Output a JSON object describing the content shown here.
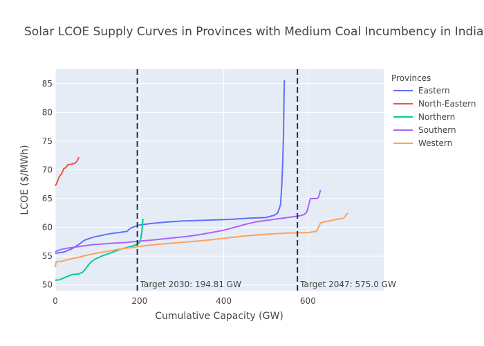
{
  "chart_data": {
    "type": "line",
    "title": "Solar LCOE Supply Curves in Provinces with Medium Coal Incumbency in India",
    "xlabel": "Cumulative Capacity (GW)",
    "ylabel": "LCOE ($/MWh)",
    "xlim": [
      0,
      780
    ],
    "ylim": [
      49,
      87.5
    ],
    "xticks": [
      0,
      200,
      400,
      600
    ],
    "yticks": [
      50,
      55,
      60,
      65,
      70,
      75,
      80,
      85
    ],
    "grid": true,
    "legend": {
      "title": "Provinces",
      "position": "right"
    },
    "series": [
      {
        "name": "Eastern",
        "color": "#636efa",
        "points": [
          [
            0,
            55.5
          ],
          [
            10,
            55.6
          ],
          [
            20,
            55.7
          ],
          [
            30,
            56.0
          ],
          [
            40,
            56.3
          ],
          [
            55,
            57.0
          ],
          [
            70,
            57.8
          ],
          [
            90,
            58.3
          ],
          [
            110,
            58.6
          ],
          [
            130,
            58.9
          ],
          [
            150,
            59.1
          ],
          [
            170,
            59.3
          ],
          [
            180,
            59.9
          ],
          [
            190,
            60.2
          ],
          [
            200,
            60.4
          ],
          [
            230,
            60.7
          ],
          [
            260,
            60.9
          ],
          [
            300,
            61.1
          ],
          [
            340,
            61.2
          ],
          [
            380,
            61.3
          ],
          [
            420,
            61.4
          ],
          [
            460,
            61.6
          ],
          [
            500,
            61.7
          ],
          [
            520,
            62.1
          ],
          [
            528,
            62.5
          ],
          [
            532,
            63.3
          ],
          [
            535,
            64.0
          ],
          [
            538,
            67.5
          ],
          [
            540,
            71.0
          ],
          [
            542,
            76.5
          ],
          [
            543,
            82.0
          ],
          [
            544,
            85.6
          ]
        ]
      },
      {
        "name": "North-Eastern",
        "color": "#ef553b",
        "points": [
          [
            0,
            67.2
          ],
          [
            3,
            67.6
          ],
          [
            6,
            68.2
          ],
          [
            10,
            68.9
          ],
          [
            15,
            69.3
          ],
          [
            20,
            70.2
          ],
          [
            25,
            70.4
          ],
          [
            30,
            70.9
          ],
          [
            40,
            71.0
          ],
          [
            48,
            71.2
          ],
          [
            52,
            71.6
          ],
          [
            56,
            72.2
          ]
        ]
      },
      {
        "name": "Northern",
        "color": "#00cc96",
        "points": [
          [
            0,
            50.8
          ],
          [
            10,
            50.9
          ],
          [
            20,
            51.2
          ],
          [
            30,
            51.5
          ],
          [
            40,
            51.8
          ],
          [
            55,
            51.9
          ],
          [
            65,
            52.2
          ],
          [
            72,
            52.8
          ],
          [
            78,
            53.4
          ],
          [
            85,
            54.0
          ],
          [
            95,
            54.5
          ],
          [
            110,
            55.0
          ],
          [
            125,
            55.4
          ],
          [
            140,
            55.8
          ],
          [
            155,
            56.2
          ],
          [
            170,
            56.5
          ],
          [
            185,
            56.8
          ],
          [
            195,
            57.1
          ],
          [
            200,
            57.4
          ],
          [
            203,
            58.0
          ],
          [
            205,
            59.0
          ],
          [
            207,
            60.5
          ],
          [
            208,
            61.5
          ]
        ]
      },
      {
        "name": "Southern",
        "color": "#ab63fa",
        "points": [
          [
            0,
            55.8
          ],
          [
            15,
            56.2
          ],
          [
            30,
            56.4
          ],
          [
            60,
            56.7
          ],
          [
            90,
            57.0
          ],
          [
            130,
            57.2
          ],
          [
            170,
            57.4
          ],
          [
            200,
            57.6
          ],
          [
            230,
            57.8
          ],
          [
            270,
            58.1
          ],
          [
            310,
            58.4
          ],
          [
            340,
            58.7
          ],
          [
            370,
            59.1
          ],
          [
            400,
            59.5
          ],
          [
            420,
            59.9
          ],
          [
            440,
            60.3
          ],
          [
            460,
            60.7
          ],
          [
            480,
            61.0
          ],
          [
            500,
            61.2
          ],
          [
            520,
            61.4
          ],
          [
            540,
            61.6
          ],
          [
            560,
            61.8
          ],
          [
            580,
            62.0
          ],
          [
            590,
            62.2
          ],
          [
            597,
            62.6
          ],
          [
            600,
            63.4
          ],
          [
            603,
            64.3
          ],
          [
            606,
            65.0
          ],
          [
            620,
            65.0
          ],
          [
            625,
            65.2
          ],
          [
            628,
            66.0
          ],
          [
            630,
            66.5
          ]
        ]
      },
      {
        "name": "Western",
        "color": "#ffa15a",
        "points": [
          [
            0,
            53.1
          ],
          [
            2,
            54.0
          ],
          [
            15,
            54.1
          ],
          [
            30,
            54.4
          ],
          [
            60,
            54.9
          ],
          [
            90,
            55.4
          ],
          [
            120,
            55.8
          ],
          [
            150,
            56.2
          ],
          [
            180,
            56.5
          ],
          [
            210,
            56.8
          ],
          [
            250,
            57.1
          ],
          [
            300,
            57.4
          ],
          [
            350,
            57.7
          ],
          [
            400,
            58.1
          ],
          [
            450,
            58.5
          ],
          [
            500,
            58.8
          ],
          [
            550,
            59.0
          ],
          [
            600,
            59.1
          ],
          [
            620,
            59.3
          ],
          [
            625,
            60.0
          ],
          [
            630,
            60.8
          ],
          [
            650,
            61.1
          ],
          [
            670,
            61.4
          ],
          [
            685,
            61.6
          ],
          [
            690,
            62.1
          ],
          [
            695,
            62.5
          ]
        ]
      }
    ],
    "reference_lines": [
      {
        "x": 194.81,
        "label": "Target 2030: 194.81 GW",
        "color": "#262a4d"
      },
      {
        "x": 575.0,
        "label": "Target 2047: 575.0 GW",
        "color": "#262a4d"
      }
    ]
  }
}
